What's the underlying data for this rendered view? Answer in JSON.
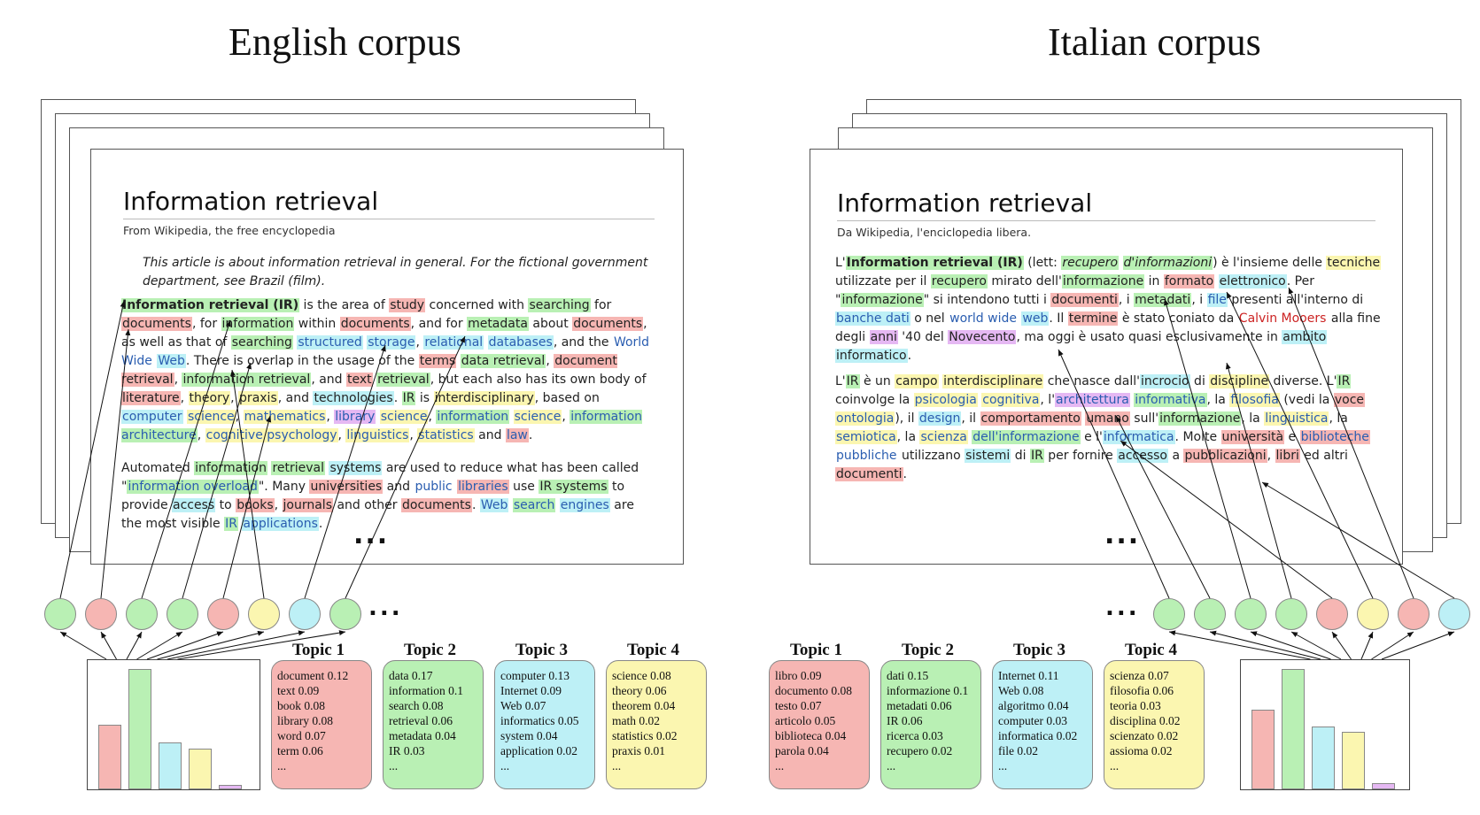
{
  "english": {
    "corpus_title": "English corpus",
    "doc_title": "Information retrieval",
    "subtitle": "From Wikipedia, the free encyclopedia",
    "note": "This article is about information retrieval in general. For the fictional government department, see Brazil (film).",
    "para1": [
      {
        "t": "Information retrieval (IR)",
        "c": "g",
        "b": true
      },
      " is the area of ",
      {
        "t": "study",
        "c": "r"
      },
      " concerned with ",
      {
        "t": "searching",
        "c": "g"
      },
      " for ",
      {
        "t": "documents",
        "c": "r"
      },
      ", for ",
      {
        "t": "information",
        "c": "g"
      },
      " within ",
      {
        "t": "documents",
        "c": "r"
      },
      ", and for ",
      {
        "t": "metadata",
        "c": "g"
      },
      " about ",
      {
        "t": "documents",
        "c": "r"
      },
      ", ",
      "as well as that of ",
      {
        "t": "searching",
        "c": "g"
      },
      " ",
      {
        "t": "structured",
        "c": "c",
        "l": true
      },
      " ",
      {
        "t": "storage",
        "c": "c",
        "l": true
      },
      ", ",
      {
        "t": "relational",
        "c": "c",
        "l": true
      },
      " ",
      {
        "t": "databases",
        "c": "c",
        "l": true
      },
      ", and the ",
      {
        "t": "World Wide",
        "l": true
      },
      " ",
      {
        "t": "Web",
        "c": "c",
        "l": true
      },
      ". There is overlap in the usage of the ",
      {
        "t": "terms",
        "c": "r"
      },
      " ",
      {
        "t": "data retrieval",
        "c": "g"
      },
      ", ",
      {
        "t": "document retrieval",
        "c": "r"
      },
      ", ",
      {
        "t": "information retrieval",
        "c": "g"
      },
      ", and ",
      {
        "t": "text",
        "c": "r"
      },
      " ",
      {
        "t": "retrieval",
        "c": "g"
      },
      ", but each also has its own body of ",
      {
        "t": "literature",
        "c": "r"
      },
      ", ",
      {
        "t": "theory",
        "c": "y"
      },
      ", ",
      {
        "t": "praxis",
        "c": "y"
      },
      ", and ",
      {
        "t": "technologies",
        "c": "c"
      },
      ". ",
      {
        "t": "IR",
        "c": "g"
      },
      " is ",
      {
        "t": "interdisciplinary",
        "c": "y"
      },
      ", based on ",
      {
        "t": "computer",
        "c": "c",
        "l": true
      },
      " ",
      {
        "t": "science",
        "c": "y",
        "l": true
      },
      ", ",
      {
        "t": "mathematics",
        "c": "y",
        "l": true
      },
      ", ",
      {
        "t": "library",
        "c": "p",
        "l": true
      },
      " ",
      {
        "t": "science",
        "c": "y",
        "l": true
      },
      ", ",
      {
        "t": "information",
        "c": "g",
        "l": true
      },
      " ",
      {
        "t": "science",
        "c": "y",
        "l": true
      },
      ", ",
      {
        "t": "information architecture",
        "c": "g",
        "l": true
      },
      ", ",
      {
        "t": "cognitive psychology",
        "c": "y",
        "l": true
      },
      ", ",
      {
        "t": "linguistics",
        "c": "y",
        "l": true
      },
      ", ",
      {
        "t": "statistics",
        "c": "y",
        "l": true
      },
      " and ",
      {
        "t": "law",
        "c": "r",
        "l": true
      },
      "."
    ],
    "para2": [
      "Automated ",
      {
        "t": "information",
        "c": "g"
      },
      " ",
      {
        "t": "retrieval",
        "c": "g"
      },
      " ",
      {
        "t": "systems",
        "c": "c"
      },
      " are used to reduce what has been called \"",
      {
        "t": "information overload",
        "c": "g",
        "l": true
      },
      "\". Many ",
      {
        "t": "universities",
        "c": "r"
      },
      " and ",
      {
        "t": "public",
        "l": true
      },
      " ",
      {
        "t": "libraries",
        "c": "r",
        "l": true
      },
      " use ",
      {
        "t": "IR systems",
        "c": "g"
      },
      " to provide ",
      {
        "t": "access",
        "c": "c"
      },
      " to ",
      {
        "t": "books",
        "c": "r"
      },
      ", ",
      {
        "t": "journals",
        "c": "r"
      },
      " and other ",
      {
        "t": "documents",
        "c": "r"
      },
      ". ",
      {
        "t": "Web",
        "c": "c",
        "l": true
      },
      " ",
      {
        "t": "search",
        "c": "g",
        "l": true
      },
      " ",
      {
        "t": "engines",
        "c": "c",
        "l": true
      },
      " are ",
      "the most visible ",
      {
        "t": "IR",
        "c": "g",
        "l": true
      },
      " ",
      {
        "t": "applications",
        "c": "c",
        "l": true
      },
      "."
    ],
    "ellipsis": "...",
    "nodes": [
      "g",
      "r",
      "g",
      "g",
      "r",
      "y",
      "c",
      "g"
    ],
    "dots": "...",
    "hist_colors": [
      "#f6b6b3",
      "#b9f0b4",
      "#bdf0f6",
      "#fbf6b0",
      "#e5b8f3"
    ],
    "hist_values": [
      0.54,
      1.0,
      0.39,
      0.34,
      0.04
    ],
    "topics": [
      {
        "title": "Topic 1",
        "color": "#f6b6b3",
        "words": [
          [
            "document",
            "0.12"
          ],
          [
            "text",
            "0.09"
          ],
          [
            "book",
            "0.08"
          ],
          [
            "library",
            "0.08"
          ],
          [
            "word",
            "0.07"
          ],
          [
            "term",
            "0.06"
          ],
          [
            "...",
            ""
          ]
        ]
      },
      {
        "title": "Topic 2",
        "color": "#b9f0b4",
        "words": [
          [
            "data",
            "0.17"
          ],
          [
            "information",
            "0.1"
          ],
          [
            "search",
            "0.08"
          ],
          [
            "retrieval",
            "0.06"
          ],
          [
            "metadata",
            "0.04"
          ],
          [
            "IR",
            "0.03"
          ],
          [
            "...",
            ""
          ]
        ]
      },
      {
        "title": "Topic 3",
        "color": "#bdf0f6",
        "words": [
          [
            "computer",
            "0.13"
          ],
          [
            "Internet",
            "0.09"
          ],
          [
            "Web",
            "0.07"
          ],
          [
            "informatics",
            "0.05"
          ],
          [
            "system",
            "0.04"
          ],
          [
            "application",
            "0.02"
          ],
          [
            "...",
            ""
          ]
        ]
      },
      {
        "title": "Topic 4",
        "color": "#fbf6b0",
        "words": [
          [
            "science",
            "0.08"
          ],
          [
            "theory",
            "0.06"
          ],
          [
            "theorem",
            "0.04"
          ],
          [
            "math",
            "0.02"
          ],
          [
            "statistics",
            "0.02"
          ],
          [
            "praxis",
            "0.01"
          ],
          [
            "...",
            ""
          ]
        ]
      }
    ]
  },
  "italian": {
    "corpus_title": "Italian corpus",
    "doc_title": "Information retrieval",
    "subtitle": "Da Wikipedia, l'enciclopedia libera.",
    "para1": [
      "L'",
      {
        "t": "Information retrieval (IR)",
        "c": "g",
        "b": true
      },
      " (lett: ",
      {
        "t": "recupero",
        "c": "g",
        "i": true
      },
      " ",
      {
        "t": "d'informazioni",
        "c": "g",
        "i": true
      },
      ") è l'insieme delle ",
      {
        "t": "tecniche",
        "c": "y"
      },
      " utilizzate per il ",
      {
        "t": "recupero",
        "c": "g"
      },
      " mirato dell'",
      {
        "t": "informazione",
        "c": "g"
      },
      " in ",
      {
        "t": "formato",
        "c": "r"
      },
      " ",
      {
        "t": "elettronico",
        "c": "c"
      },
      ". Per ",
      "\"",
      {
        "t": "informazione",
        "c": "g"
      },
      "\" si intendono tutti i ",
      {
        "t": "documenti",
        "c": "r"
      },
      ", i ",
      {
        "t": "metadati",
        "c": "g"
      },
      ", i ",
      {
        "t": "file",
        "c": "c",
        "l": true
      },
      " presenti all'interno di ",
      {
        "t": "banche dati",
        "c": "c",
        "l": true
      },
      " o nel ",
      {
        "t": "world wide",
        "l": true
      },
      " ",
      {
        "t": "web",
        "c": "c",
        "l": true
      },
      ". Il ",
      {
        "t": "termine",
        "c": "r"
      },
      " è stato coniato da ",
      {
        "t": "Calvin Mooers",
        "rl": true
      },
      " alla ",
      "fine degli ",
      {
        "t": "anni",
        "c": "p"
      },
      " '40 del ",
      {
        "t": "Novecento",
        "c": "p"
      },
      ", ma oggi è usato quasi esclusivamente in ",
      {
        "t": "ambito",
        "c": "c"
      },
      " ",
      {
        "t": "informatico",
        "c": "c"
      },
      "."
    ],
    "para2": [
      "L'",
      {
        "t": "IR",
        "c": "g"
      },
      " è un ",
      {
        "t": "campo",
        "c": "y"
      },
      " ",
      {
        "t": "interdisciplinare",
        "c": "y"
      },
      " che nasce dall'",
      {
        "t": "incrocio",
        "c": "c"
      },
      " di ",
      {
        "t": "discipline",
        "c": "y"
      },
      " diverse. L'",
      {
        "t": "IR",
        "c": "g"
      },
      " ",
      "coinvolge la ",
      {
        "t": "psicologia",
        "c": "y",
        "l": true
      },
      " ",
      {
        "t": "cognitiva",
        "c": "y",
        "l": true
      },
      ", l'",
      {
        "t": "architettura",
        "c": "p",
        "l": true
      },
      " ",
      {
        "t": "informativa",
        "c": "g",
        "l": true
      },
      ", la ",
      {
        "t": "filosofia",
        "c": "y",
        "l": true
      },
      " (vedi la ",
      {
        "t": "voce",
        "c": "r"
      },
      " ",
      {
        "t": "ontologia",
        "c": "y",
        "l": true
      },
      "), il ",
      {
        "t": "design",
        "c": "c",
        "l": true
      },
      ", il ",
      {
        "t": "comportamento",
        "c": "r"
      },
      " ",
      {
        "t": "umano",
        "c": "r"
      },
      " sull'",
      {
        "t": "informazione",
        "c": "g"
      },
      ", la ",
      {
        "t": "linguistica",
        "c": "y",
        "l": true
      },
      ", la ",
      {
        "t": "semiotica",
        "c": "y",
        "l": true
      },
      ", la ",
      {
        "t": "scienza",
        "c": "y",
        "l": true
      },
      " ",
      {
        "t": "dell'informazione",
        "c": "g",
        "l": true
      },
      " e l'",
      {
        "t": "informatica",
        "c": "c",
        "l": true
      },
      ". Molte ",
      {
        "t": "università",
        "c": "r"
      },
      " e ",
      {
        "t": "biblioteche",
        "c": "r",
        "l": true
      },
      " ",
      {
        "t": "pubbliche",
        "l": true
      },
      " utilizzano ",
      {
        "t": "sistemi",
        "c": "c"
      },
      " di ",
      {
        "t": "IR",
        "c": "g"
      },
      " per fornire ",
      {
        "t": "accesso",
        "c": "c"
      },
      " a ",
      {
        "t": "pubblicazioni",
        "c": "r"
      },
      ", ",
      {
        "t": "libri",
        "c": "r"
      },
      " ed altri ",
      {
        "t": "documenti",
        "c": "r"
      },
      "."
    ],
    "ellipsis": "...",
    "nodes": [
      "g",
      "g",
      "g",
      "g",
      "r",
      "y",
      "r",
      "c"
    ],
    "dots": "...",
    "hist_colors": [
      "#f6b6b3",
      "#b9f0b4",
      "#bdf0f6",
      "#fbf6b0",
      "#e5b8f3"
    ],
    "hist_values": [
      0.66,
      1.0,
      0.52,
      0.48,
      0.05
    ],
    "topics": [
      {
        "title": "Topic 1",
        "color": "#f6b6b3",
        "words": [
          [
            "libro",
            "0.09"
          ],
          [
            "documento",
            "0.08"
          ],
          [
            "testo",
            "0.07"
          ],
          [
            "articolo",
            "0.05"
          ],
          [
            "biblioteca",
            "0.04"
          ],
          [
            "parola",
            "0.04"
          ],
          [
            "...",
            ""
          ]
        ]
      },
      {
        "title": "Topic 2",
        "color": "#b9f0b4",
        "words": [
          [
            "dati",
            "0.15"
          ],
          [
            "informazione",
            "0.1"
          ],
          [
            "metadati",
            "0.06"
          ],
          [
            "IR",
            "0.06"
          ],
          [
            "ricerca",
            "0.03"
          ],
          [
            "recupero",
            "0.02"
          ],
          [
            "...",
            ""
          ]
        ]
      },
      {
        "title": "Topic 3",
        "color": "#bdf0f6",
        "words": [
          [
            "Internet",
            "0.11"
          ],
          [
            "Web",
            "0.08"
          ],
          [
            "algoritmo",
            "0.04"
          ],
          [
            "computer",
            "0.03"
          ],
          [
            "informatica",
            "0.02"
          ],
          [
            "file",
            "0.02"
          ],
          [
            "...",
            ""
          ]
        ]
      },
      {
        "title": "Topic 4",
        "color": "#fbf6b0",
        "words": [
          [
            "scienza",
            "0.07"
          ],
          [
            "filosofia",
            "0.06"
          ],
          [
            "teoria",
            "0.03"
          ],
          [
            "disciplina",
            "0.02"
          ],
          [
            "scienzato",
            "0.02"
          ],
          [
            "assioma",
            "0.02"
          ],
          [
            "...",
            ""
          ]
        ]
      }
    ]
  }
}
